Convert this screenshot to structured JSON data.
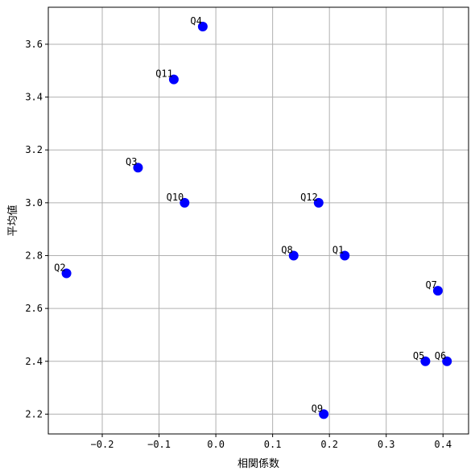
{
  "chart_data": {
    "type": "scatter",
    "title": "",
    "xlabel": "相関係数",
    "ylabel": "平均値",
    "xlim": [
      -0.295,
      0.445
    ],
    "ylim": [
      2.125,
      3.74
    ],
    "xticks": [
      -0.2,
      -0.1,
      0.0,
      0.1,
      0.2,
      0.3,
      0.4
    ],
    "xtick_labels": [
      "−0.2",
      "−0.1",
      "0.0",
      "0.1",
      "0.2",
      "0.3",
      "0.4"
    ],
    "yticks": [
      2.2,
      2.4,
      2.6,
      2.8,
      3.0,
      3.2,
      3.4,
      3.6
    ],
    "ytick_labels": [
      "2.2",
      "2.4",
      "2.6",
      "2.8",
      "3.0",
      "3.2",
      "3.4",
      "3.6"
    ],
    "grid": true,
    "marker_color": "#0000ff",
    "points": [
      {
        "label": "Q1",
        "x": 0.227,
        "y": 2.8
      },
      {
        "label": "Q2",
        "x": -0.263,
        "y": 2.733
      },
      {
        "label": "Q3",
        "x": -0.137,
        "y": 3.133
      },
      {
        "label": "Q4",
        "x": -0.023,
        "y": 3.667
      },
      {
        "label": "Q5",
        "x": 0.369,
        "y": 2.4
      },
      {
        "label": "Q6",
        "x": 0.407,
        "y": 2.4
      },
      {
        "label": "Q7",
        "x": 0.391,
        "y": 2.667
      },
      {
        "label": "Q8",
        "x": 0.137,
        "y": 2.8
      },
      {
        "label": "Q9",
        "x": 0.19,
        "y": 2.2
      },
      {
        "label": "Q10",
        "x": -0.055,
        "y": 3.0
      },
      {
        "label": "Q11",
        "x": -0.074,
        "y": 3.467
      },
      {
        "label": "Q12",
        "x": 0.181,
        "y": 3.0
      }
    ]
  }
}
